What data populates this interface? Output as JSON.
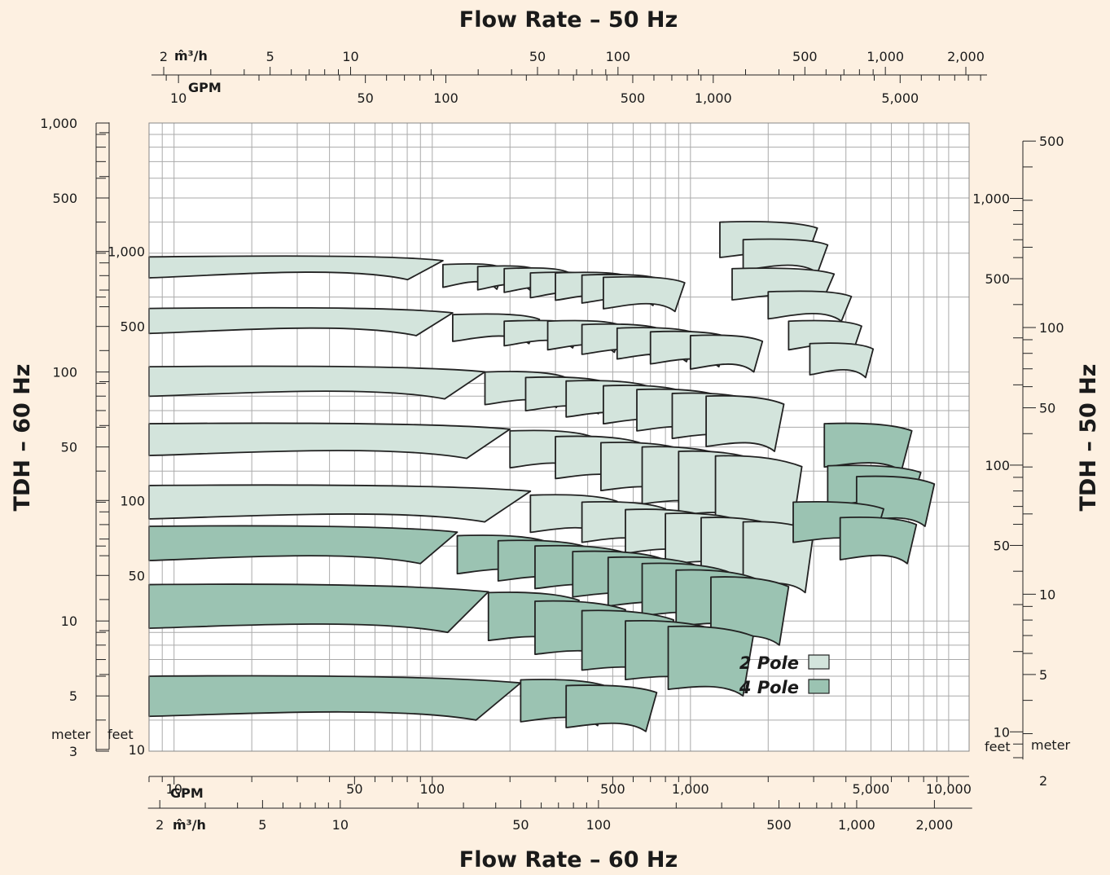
{
  "chart_data": {
    "type": "area",
    "title_top": "Flow Rate – 50 Hz",
    "title_bottom": "Flow Rate – 60 Hz",
    "ylabel_left": "TDH – 60 Hz",
    "ylabel_right": "TDH – 50 Hz",
    "x_scale": "log",
    "y_scale": "log",
    "grid": true,
    "colors": {
      "background": "#fdf0e1",
      "plot": "#ffffff",
      "grid": "#aaaaaa",
      "two_pole": "#d3e4dc",
      "four_pole": "#9bc3b2",
      "outline": "#222222"
    },
    "units": {
      "m3h": "m̂³/h",
      "gpm": "GPM",
      "meter": "meter",
      "feet": "feet"
    },
    "x_top_m3h": {
      "unit": "m̂³/h",
      "range": [
        1.8,
        2400
      ],
      "labels": [
        [
          2,
          "2"
        ],
        [
          5,
          "5"
        ],
        [
          10,
          "10"
        ],
        [
          50,
          "50"
        ],
        [
          100,
          "100"
        ],
        [
          500,
          "500"
        ],
        [
          1000,
          "1,000"
        ],
        [
          2000,
          "2,000"
        ]
      ]
    },
    "x_top_gpm": {
      "unit": "GPM",
      "labels": [
        [
          10,
          "10"
        ],
        [
          50,
          "50"
        ],
        [
          100,
          "100"
        ],
        [
          500,
          "500"
        ],
        [
          1000,
          "1,000"
        ],
        [
          5000,
          "5,000"
        ]
      ]
    },
    "x_bottom_gpm": {
      "unit": "GPM",
      "range": [
        8,
        12000
      ],
      "labels": [
        [
          10,
          "10"
        ],
        [
          50,
          "50"
        ],
        [
          100,
          "100"
        ],
        [
          500,
          "500"
        ],
        [
          1000,
          "1,000"
        ],
        [
          5000,
          "5,000"
        ],
        [
          10000,
          "10,000"
        ]
      ]
    },
    "x_bottom_m3h": {
      "unit": "m̂³/h",
      "labels": [
        [
          2,
          "2"
        ],
        [
          5,
          "5"
        ],
        [
          10,
          "10"
        ],
        [
          50,
          "50"
        ],
        [
          100,
          "100"
        ],
        [
          500,
          "500"
        ],
        [
          1000,
          "1,000"
        ],
        [
          2000,
          "2,000"
        ]
      ]
    },
    "y_left_meter": {
      "unit": "meter",
      "range": [
        3,
        1000
      ],
      "labels": [
        [
          3,
          "3"
        ],
        [
          5,
          "5"
        ],
        [
          10,
          "10"
        ],
        [
          50,
          "50"
        ],
        [
          100,
          "100"
        ],
        [
          500,
          "500"
        ],
        [
          1000,
          "1,000"
        ]
      ]
    },
    "y_left_feet": {
      "unit": "feet",
      "labels": [
        [
          10,
          "10"
        ],
        [
          50,
          "50"
        ],
        [
          100,
          "100"
        ],
        [
          500,
          "500"
        ],
        [
          1000,
          "1,000"
        ]
      ]
    },
    "y_right_feet": {
      "unit": "feet",
      "labels": [
        [
          10,
          "10"
        ],
        [
          50,
          "50"
        ],
        [
          100,
          "100"
        ],
        [
          500,
          "500"
        ],
        [
          1000,
          "1,000"
        ]
      ]
    },
    "y_right_meter": {
      "unit": "meter",
      "labels": [
        [
          2,
          "2"
        ],
        [
          5,
          "5"
        ],
        [
          10,
          "10"
        ],
        [
          50,
          "50"
        ],
        [
          100,
          "100"
        ],
        [
          500,
          "500"
        ]
      ]
    },
    "legend": {
      "position": "bottom-right",
      "items": [
        {
          "label": "2 Pole",
          "kind": "two_pole"
        },
        {
          "label": "4 Pole",
          "kind": "four_pole"
        }
      ]
    },
    "series": [
      {
        "name": "2 Pole",
        "kind": "two_pole",
        "regions": [
          {
            "q": [
              8,
              110
            ],
            "h": [
              290,
              235
            ]
          },
          {
            "q": [
              110,
              190
            ],
            "h": [
              270,
              215
            ]
          },
          {
            "q": [
              150,
              260
            ],
            "h": [
              265,
              210
            ]
          },
          {
            "q": [
              190,
              340
            ],
            "h": [
              260,
              205
            ]
          },
          {
            "q": [
              240,
              450
            ],
            "h": [
              250,
              195
            ]
          },
          {
            "q": [
              300,
              600
            ],
            "h": [
              250,
              190
            ]
          },
          {
            "q": [
              380,
              780
            ],
            "h": [
              245,
              185
            ]
          },
          {
            "q": [
              460,
              950
            ],
            "h": [
              240,
              175
            ]
          },
          {
            "q": [
              8,
              120
            ],
            "h": [
              180,
              140
            ]
          },
          {
            "q": [
              120,
              260
            ],
            "h": [
              170,
              130
            ]
          },
          {
            "q": [
              190,
              380
            ],
            "h": [
              160,
              125
            ]
          },
          {
            "q": [
              280,
              550
            ],
            "h": [
              160,
              120
            ]
          },
          {
            "q": [
              380,
              780
            ],
            "h": [
              155,
              115
            ]
          },
          {
            "q": [
              520,
              1050
            ],
            "h": [
              150,
              110
            ]
          },
          {
            "q": [
              700,
              1400
            ],
            "h": [
              145,
              105
            ]
          },
          {
            "q": [
              1000,
              1900
            ],
            "h": [
              140,
              100
            ]
          },
          {
            "q": [
              8,
              160
            ],
            "h": [
              105,
              78
            ]
          },
          {
            "q": [
              160,
              330
            ],
            "h": [
              100,
              72
            ]
          },
          {
            "q": [
              230,
              480
            ],
            "h": [
              95,
              68
            ]
          },
          {
            "q": [
              330,
              700
            ],
            "h": [
              92,
              64
            ]
          },
          {
            "q": [
              460,
              950
            ],
            "h": [
              88,
              60
            ]
          },
          {
            "q": [
              620,
              1300
            ],
            "h": [
              85,
              56
            ]
          },
          {
            "q": [
              850,
              1750
            ],
            "h": [
              82,
              52
            ]
          },
          {
            "q": [
              1150,
              2300
            ],
            "h": [
              80,
              48
            ]
          },
          {
            "q": [
              8,
              200
            ],
            "h": [
              62,
              45
            ]
          },
          {
            "q": [
              200,
              420
            ],
            "h": [
              58,
              40
            ]
          },
          {
            "q": [
              300,
              650
            ],
            "h": [
              55,
              36
            ]
          },
          {
            "q": [
              450,
              950
            ],
            "h": [
              52,
              32
            ]
          },
          {
            "q": [
              650,
              1350
            ],
            "h": [
              50,
              28
            ]
          },
          {
            "q": [
              900,
              1850
            ],
            "h": [
              48,
              25
            ]
          },
          {
            "q": [
              1250,
              2700
            ],
            "h": [
              46,
              22
            ]
          },
          {
            "q": [
              8,
              240
            ],
            "h": [
              35,
              25
            ]
          },
          {
            "q": [
              240,
              520
            ],
            "h": [
              32,
              22
            ]
          },
          {
            "q": [
              380,
              800
            ],
            "h": [
              30,
              20
            ]
          },
          {
            "q": [
              560,
              1150
            ],
            "h": [
              28,
              18
            ]
          },
          {
            "q": [
              800,
              1600
            ],
            "h": [
              27,
              16
            ]
          },
          {
            "q": [
              1100,
              2200
            ],
            "h": [
              26,
              14
            ]
          },
          {
            "q": [
              1600,
              3000
            ],
            "h": [
              25,
              13
            ]
          },
          {
            "q": [
              1300,
              3100
            ],
            "h": [
              400,
              280
            ]
          },
          {
            "q": [
              1600,
              3400
            ],
            "h": [
              340,
              250
            ]
          },
          {
            "q": [
              1450,
              3600
            ],
            "h": [
              260,
              190
            ]
          },
          {
            "q": [
              2000,
              4200
            ],
            "h": [
              210,
              160
            ]
          },
          {
            "q": [
              2400,
              4600
            ],
            "h": [
              160,
              120
            ]
          },
          {
            "q": [
              2900,
              5100
            ],
            "h": [
              130,
              95
            ]
          }
        ]
      },
      {
        "name": "4 Pole",
        "kind": "four_pole",
        "regions": [
          {
            "q": [
              8,
              125
            ],
            "h": [
              24,
              17
            ]
          },
          {
            "q": [
              125,
              280
            ],
            "h": [
              22,
              15
            ]
          },
          {
            "q": [
              180,
              400
            ],
            "h": [
              21,
              14
            ]
          },
          {
            "q": [
              250,
              560
            ],
            "h": [
              20,
              13
            ]
          },
          {
            "q": [
              350,
              780
            ],
            "h": [
              19,
              12
            ]
          },
          {
            "q": [
              480,
              1050
            ],
            "h": [
              18,
              11
            ]
          },
          {
            "q": [
              650,
              1400
            ],
            "h": [
              17,
              10
            ]
          },
          {
            "q": [
              880,
              1800
            ],
            "h": [
              16,
              9
            ]
          },
          {
            "q": [
              1200,
              2400
            ],
            "h": [
              15,
              8
            ]
          },
          {
            "q": [
              8,
              165
            ],
            "h": [
              14,
              9
            ]
          },
          {
            "q": [
              165,
              370
            ],
            "h": [
              13,
              8
            ]
          },
          {
            "q": [
              250,
              560
            ],
            "h": [
              12,
              7
            ]
          },
          {
            "q": [
              380,
              860
            ],
            "h": [
              11,
              6
            ]
          },
          {
            "q": [
              560,
              1250
            ],
            "h": [
              10,
              5.5
            ]
          },
          {
            "q": [
              820,
              1750
            ],
            "h": [
              9.5,
              5
            ]
          },
          {
            "q": [
              8,
              220
            ],
            "h": [
              6,
              4
            ]
          },
          {
            "q": [
              220,
              480
            ],
            "h": [
              5.8,
              3.8
            ]
          },
          {
            "q": [
              330,
              740
            ],
            "h": [
              5.5,
              3.6
            ]
          },
          {
            "q": [
              3300,
              7200
            ],
            "h": [
              62,
              40
            ]
          },
          {
            "q": [
              3400,
              7800
            ],
            "h": [
              42,
              28
            ]
          },
          {
            "q": [
              4400,
              8800
            ],
            "h": [
              38,
              24
            ]
          },
          {
            "q": [
              2500,
              5600
            ],
            "h": [
              30,
              20
            ]
          },
          {
            "q": [
              3800,
              7500
            ],
            "h": [
              26,
              17
            ]
          }
        ]
      }
    ]
  }
}
